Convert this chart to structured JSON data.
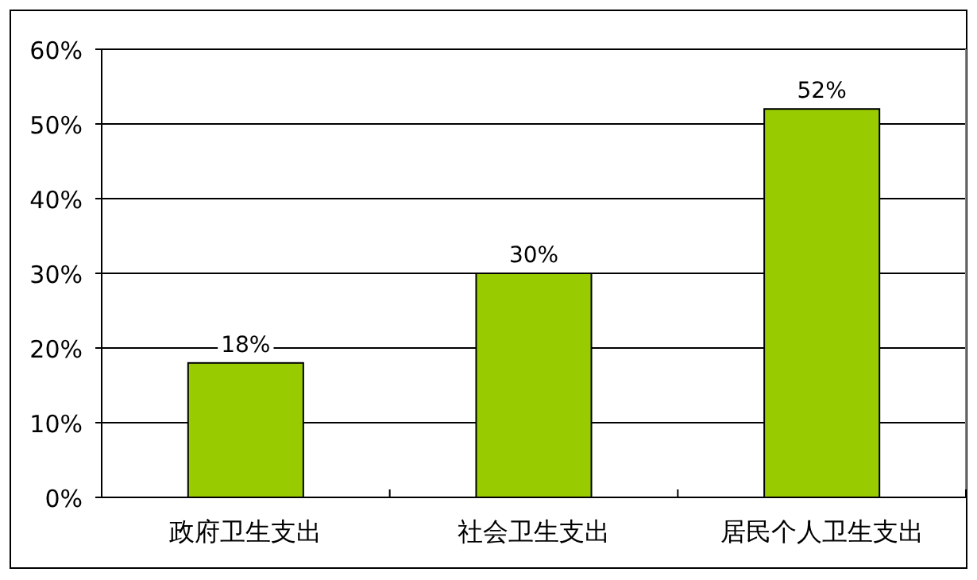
{
  "chart_data": {
    "type": "bar",
    "categories": [
      "政府卫生支出",
      "社会卫生支出",
      "居民个人卫生支出"
    ],
    "values": [
      18,
      30,
      52
    ],
    "value_labels": [
      "18%",
      "30%",
      "52%"
    ],
    "color": "#99cc00",
    "ylim": [
      0,
      60
    ],
    "yticks": [
      {
        "value": 0,
        "label": "0%"
      },
      {
        "value": 10,
        "label": "10%"
      },
      {
        "value": 20,
        "label": "20%"
      },
      {
        "value": 30,
        "label": "30%"
      },
      {
        "value": 40,
        "label": "40%"
      },
      {
        "value": 50,
        "label": "50%"
      },
      {
        "value": 60,
        "label": "60%"
      }
    ],
    "grid": "y"
  }
}
